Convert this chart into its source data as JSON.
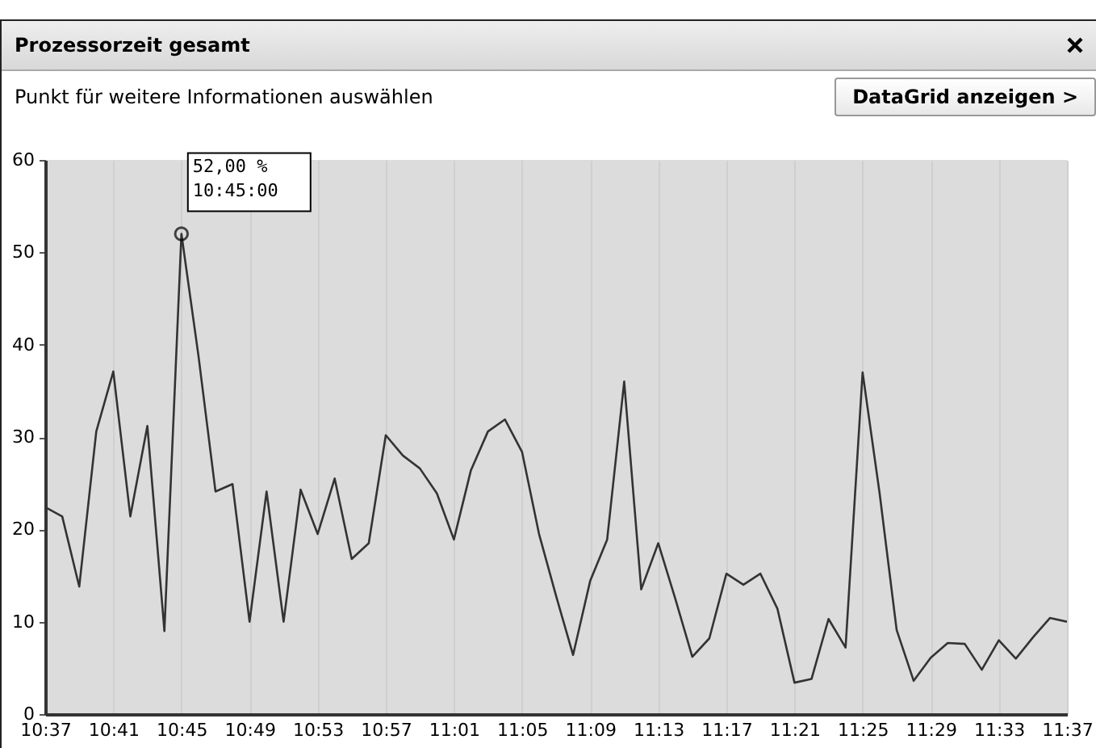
{
  "chart_data": {
    "type": "line",
    "title": "Prozessorzeit gesamt",
    "subtitle": "Punkt für weitere Informationen auswählen",
    "categories": [
      "10:37",
      null,
      null,
      null,
      "10:41",
      null,
      null,
      null,
      "10:45",
      null,
      null,
      null,
      "10:49",
      null,
      null,
      null,
      "10:53",
      null,
      null,
      null,
      "10:57",
      null,
      null,
      null,
      "11:01",
      null,
      null,
      null,
      "11:05",
      null,
      null,
      null,
      "11:09",
      null,
      null,
      null,
      "11:13",
      null,
      null,
      null,
      "11:17",
      null,
      null,
      null,
      "11:21",
      null,
      null,
      null,
      "11:25",
      null,
      null,
      null,
      "11:29",
      null,
      null,
      null,
      "11:33",
      null,
      null,
      null,
      "11:37"
    ],
    "series": [
      {
        "color": "#333333",
        "values": [
          22.4,
          21.4,
          13.8,
          30.6,
          37.1,
          21.4,
          31.2,
          9.0,
          52,
          38.8,
          24.1,
          24.9,
          10.0,
          24.1,
          10.0,
          24.3,
          19.5,
          25.5,
          16.8,
          18.5,
          30.2,
          28.0,
          26.6,
          23.9,
          18.9,
          26.4,
          30.6,
          31.9,
          28.4,
          19.5,
          12.8,
          6.4,
          14.4,
          18.9,
          36.0,
          13.5,
          18.5,
          12.5,
          6.2,
          8.2,
          15.2,
          14.0,
          15.2,
          11.4,
          3.4,
          3.8,
          10.3,
          7.2,
          37.0,
          23.9,
          9.1,
          3.6,
          6.1,
          7.7,
          7.6,
          4.8,
          8.0,
          6.0,
          8.3,
          10.4,
          10.0
        ]
      }
    ],
    "ylim": [
      0,
      60
    ],
    "yticks": [
      0,
      10,
      20,
      30,
      40,
      50,
      60
    ],
    "grid": "x",
    "annotations": [
      {
        "text": "52,00 %\n10:45:00",
        "x": "10:45",
        "y": 52
      },
      "DataGrid anzeigen >"
    ]
  }
}
